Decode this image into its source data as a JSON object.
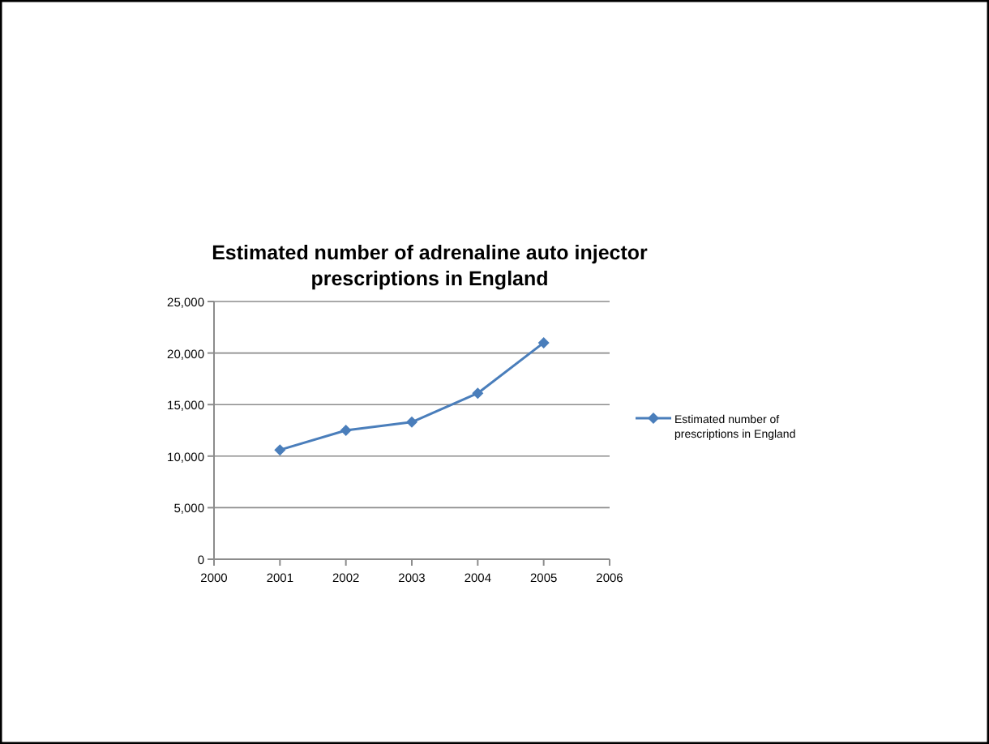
{
  "chart_data": {
    "type": "line",
    "title": "Estimated number of adrenaline auto injector prescriptions in England",
    "x": [
      2001,
      2002,
      2003,
      2004,
      2005
    ],
    "series": [
      {
        "name": "Estimated number of prescriptions in England",
        "color": "#4a7ebb",
        "values": [
          10600,
          12500,
          13300,
          16100,
          21000
        ]
      }
    ],
    "xlim": [
      2000,
      2006
    ],
    "xticks": [
      2000,
      2001,
      2002,
      2003,
      2004,
      2005,
      2006
    ],
    "ylim": [
      0,
      25000
    ],
    "yticks": [
      {
        "value": 0,
        "label": "0"
      },
      {
        "value": 5000,
        "label": "5,000"
      },
      {
        "value": 10000,
        "label": "10,000"
      },
      {
        "value": 15000,
        "label": "15,000"
      },
      {
        "value": 20000,
        "label": "20,000"
      },
      {
        "value": 25000,
        "label": "25,000"
      }
    ],
    "grid": "y",
    "legend": "right",
    "marker": "diamond",
    "line_style": "solid"
  }
}
